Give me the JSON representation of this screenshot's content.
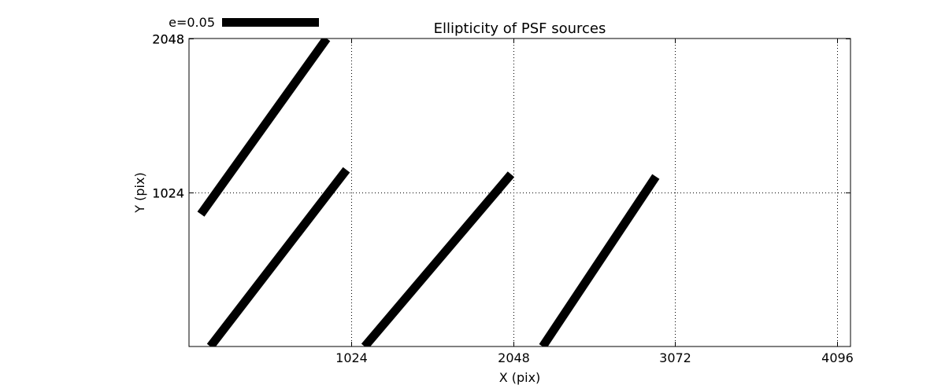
{
  "chart_data": {
    "type": "line",
    "title": "Ellipticity of PSF sources",
    "xlabel": "X (pix)",
    "ylabel": "Y (pix)",
    "xlim": [
      0,
      4180
    ],
    "ylim": [
      0,
      2048
    ],
    "xticks": [
      1024,
      2048,
      3072,
      4096
    ],
    "yticks": [
      1024,
      2048
    ],
    "ytick_labels": [
      "1024",
      "2048"
    ],
    "ytick_overlap_labels": [
      "1024",
      "2048"
    ],
    "grid": true,
    "grid_style": "dotted",
    "line_color": "#000000",
    "scale_bar": {
      "label": "e=0.05"
    },
    "segments": [
      {
        "x": [
          75,
          870
        ],
        "y": [
          880,
          2048
        ]
      },
      {
        "x": [
          135,
          995
        ],
        "y": [
          0,
          1175
        ]
      },
      {
        "x": [
          1110,
          2035
        ],
        "y": [
          0,
          1145
        ]
      },
      {
        "x": [
          2235,
          2950
        ],
        "y": [
          0,
          1130
        ]
      }
    ]
  }
}
